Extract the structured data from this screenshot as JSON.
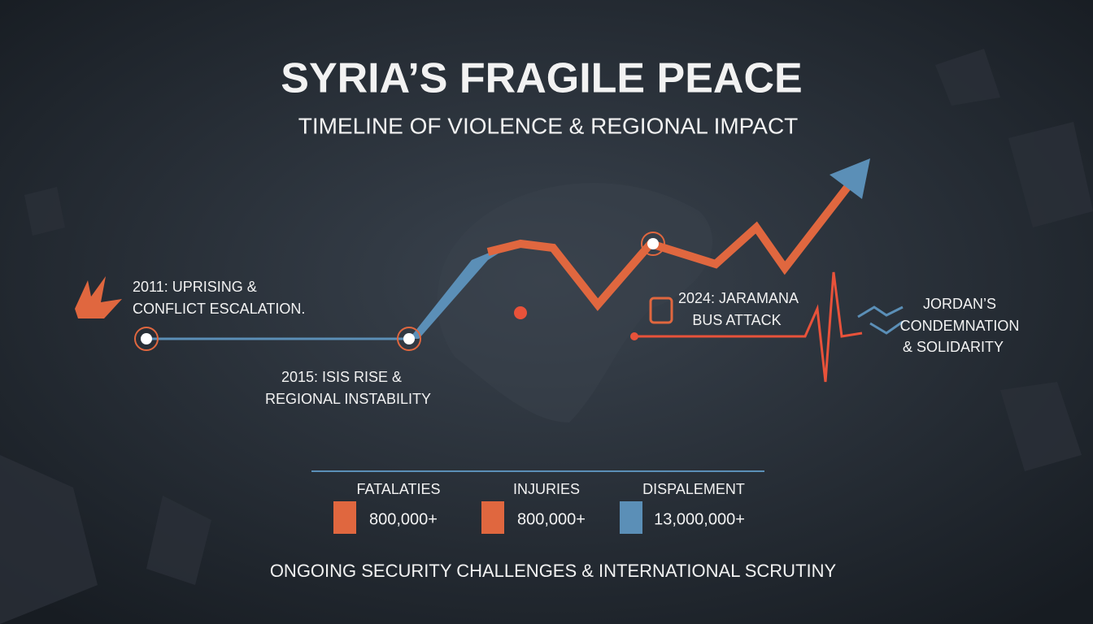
{
  "header": {
    "title": "SYRIA’S FRAGILE PEACE",
    "subtitle": "TIMELINE OF VIOLENCE & REGIONAL IMPACT"
  },
  "events": [
    {
      "lines": [
        "2011: UPRISING &",
        "CONFLICT ESCALATION."
      ]
    },
    {
      "lines": [
        "2015: ISIS RISE &",
        "REGIONAL INSTABILITY"
      ]
    },
    {
      "lines": [
        "2024: JARAMANA",
        "BUS ATTACK"
      ]
    },
    {
      "lines": [
        "JORDAN’S",
        "CONDEMNATION",
        "& SOLIDARITY"
      ]
    }
  ],
  "stats": [
    {
      "label": "FATALATIES",
      "value": "800,000+"
    },
    {
      "label": "INJURIES",
      "value": "800,000+"
    },
    {
      "label": "DISPALEMENT",
      "value": "13,000,000+"
    }
  ],
  "footer": "ONGOING SECURITY CHALLENGES & INTERNATIONAL SCRUTINY"
}
